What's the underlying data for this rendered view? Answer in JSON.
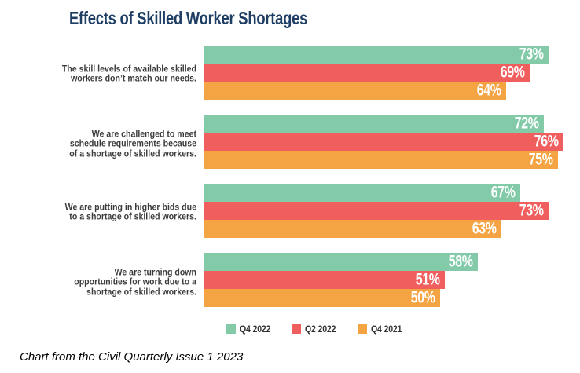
{
  "title": "Effects of Skilled Worker Shortages",
  "caption": "Chart from the Civil Quarterly Issue 1 2023",
  "palette": {
    "title_navy": "#1E3E64",
    "teal": "#83CBA8",
    "red": "#F15E5E",
    "orange": "#F4A443",
    "category_text": "#3C3C3C",
    "value_text": "#FFFFFF"
  },
  "chart_data": {
    "type": "bar",
    "orientation": "horizontal",
    "title": "Effects of Skilled Worker Shortages",
    "value_suffix": "%",
    "value_labels_position": "inside-end",
    "axis_visible": false,
    "grid": false,
    "xlim": [
      0,
      80
    ],
    "legend_position": "bottom-center",
    "categories": [
      "The skill levels of available skilled workers don’t match our needs.",
      "We are challenged to meet schedule requirements because of a shortage of skilled workers.",
      "We are putting in higher bids due to a shortage of skilled workers.",
      "We are turning down opportunities for work due to a shortage of skilled workers."
    ],
    "category_lines": [
      [
        "The skill levels of available skilled",
        "workers don’t match our needs."
      ],
      [
        "We are challenged to meet",
        "schedule requirements because",
        "of a shortage of skilled workers."
      ],
      [
        "We are putting in higher bids due",
        "to a shortage of skilled workers."
      ],
      [
        "We are turning down",
        "opportunities for work due to a",
        "shortage of skilled workers."
      ]
    ],
    "series": [
      {
        "name": "Q4 2022",
        "color": "#83CBA8",
        "values": [
          73,
          72,
          67,
          58
        ]
      },
      {
        "name": "Q2 2022",
        "color": "#F15E5E",
        "values": [
          69,
          76,
          73,
          51
        ]
      },
      {
        "name": "Q4 2021",
        "color": "#F4A443",
        "values": [
          64,
          75,
          63,
          50
        ]
      }
    ]
  }
}
